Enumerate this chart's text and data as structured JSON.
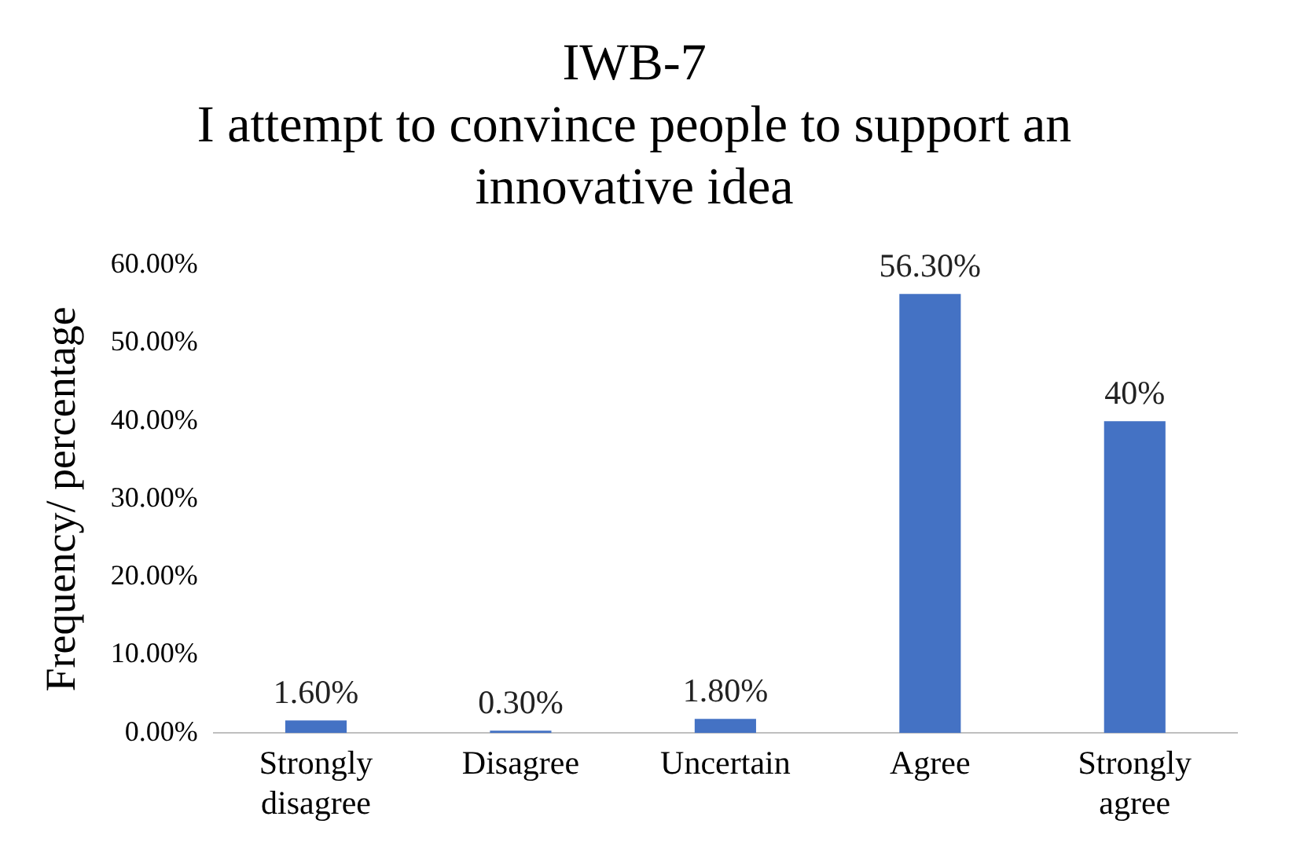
{
  "chart_data": {
    "type": "bar",
    "title": "IWB-7",
    "subtitle": "I attempt to convince people to support an innovative idea",
    "ylabel": "Frequency/ percentage",
    "categories": [
      "Strongly disagree",
      "Disagree",
      "Uncertain",
      "Agree",
      "Strongly agree"
    ],
    "values": [
      1.6,
      0.3,
      1.8,
      56.3,
      40
    ],
    "color": "#4472c4",
    "value_labels": [
      "1.60%",
      "0.30%",
      "1.80%",
      "56.30%",
      "40%"
    ],
    "ylim": [
      0,
      60
    ],
    "yticks": [
      {
        "value": 0,
        "label": "0.00%"
      },
      {
        "value": 10,
        "label": "10.00%"
      },
      {
        "value": 20,
        "label": "20.00%"
      },
      {
        "value": 30,
        "label": "30.00%"
      },
      {
        "value": 40,
        "label": "40.00%"
      },
      {
        "value": 50,
        "label": "50.00%"
      },
      {
        "value": 60,
        "label": "60.00%"
      }
    ],
    "grid": false,
    "legend": false
  }
}
